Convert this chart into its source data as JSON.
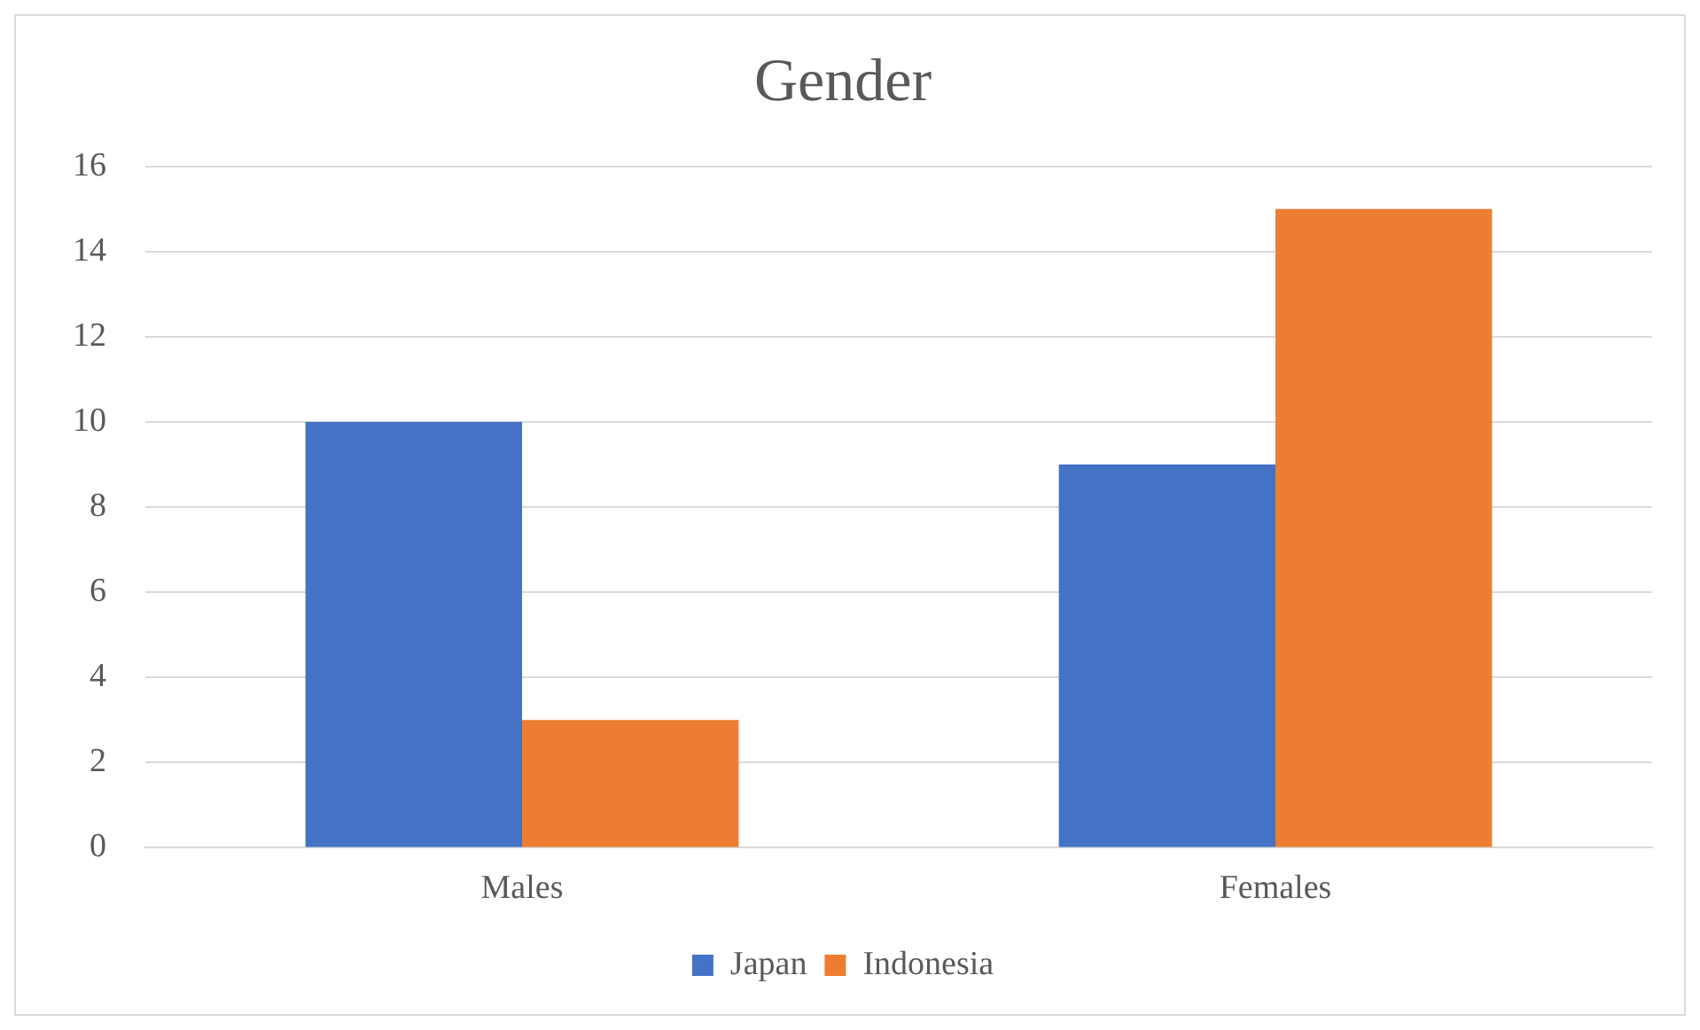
{
  "chart_data": {
    "type": "bar",
    "title": "Gender",
    "categories": [
      "Males",
      "Females"
    ],
    "series": [
      {
        "name": "Japan",
        "color": "#4472c4",
        "values": [
          10,
          9
        ]
      },
      {
        "name": "Indonesia",
        "color": "#ed7d31",
        "values": [
          3,
          15
        ]
      }
    ],
    "ylim": [
      0,
      16
    ],
    "yticks": [
      0,
      2,
      4,
      6,
      8,
      10,
      12,
      14,
      16
    ],
    "grid": "y",
    "legend": "bottom"
  }
}
